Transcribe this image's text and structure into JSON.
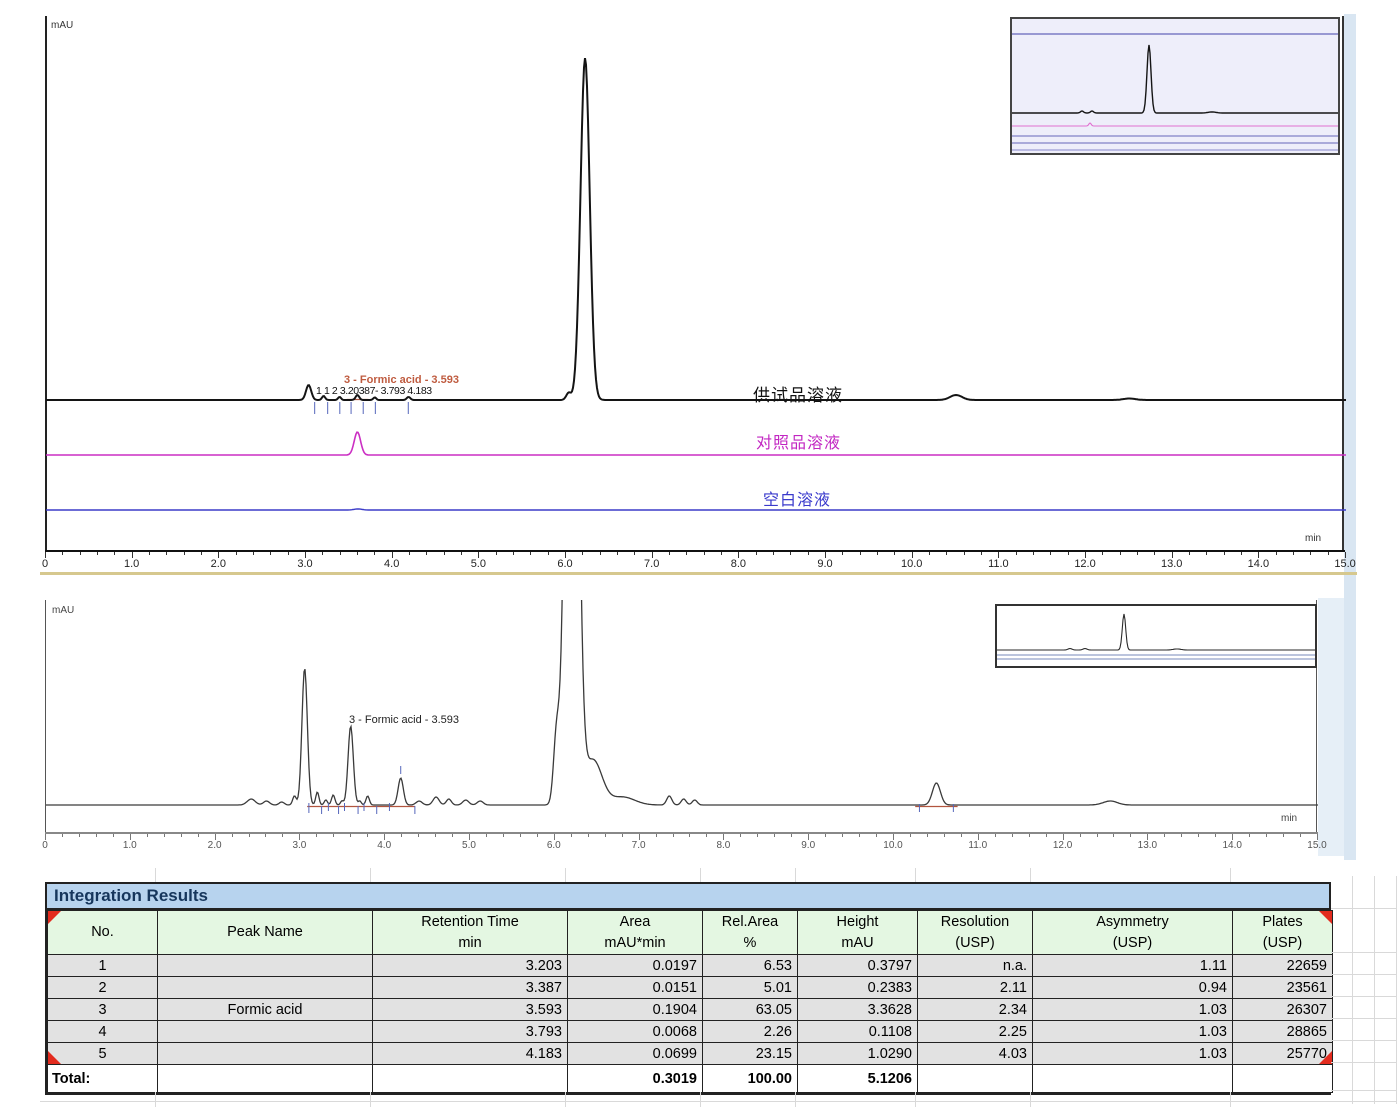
{
  "chart1": {
    "ylabel": "mAU",
    "xlabel": "min",
    "axis_labels": [
      "0",
      "1.0",
      "2.0",
      "3.0",
      "4.0",
      "5.0",
      "6.0",
      "7.0",
      "8.0",
      "9.0",
      "10.0",
      "11.0",
      "12.0",
      "13.0",
      "14.0",
      "15.0"
    ],
    "series_labels": {
      "sample": "供试品溶液",
      "reference": "对照品溶液",
      "blank": "空白溶液"
    },
    "peak_cluster_label": "1 1 2 3.20387- 3.793 4.183",
    "formic_label": "3 - Formic acid - 3.593"
  },
  "chart2": {
    "ylabel": "mAU",
    "xlabel": "min",
    "axis_labels": [
      "0",
      "1.0",
      "2.0",
      "3.0",
      "4.0",
      "5.0",
      "6.0",
      "7.0",
      "8.0",
      "9.0",
      "10.0",
      "11.0",
      "12.0",
      "13.0",
      "14.0",
      "15.0"
    ],
    "formic_label": "3 - Formic acid - 3.593"
  },
  "table": {
    "title": "Integration Results",
    "headers": [
      [
        "No.",
        ""
      ],
      [
        "Peak Name",
        ""
      ],
      [
        "Retention Time",
        "min"
      ],
      [
        "Area",
        "mAU*min"
      ],
      [
        "Rel.Area",
        "%"
      ],
      [
        "Height",
        "mAU"
      ],
      [
        "Resolution",
        "(USP)"
      ],
      [
        "Asymmetry",
        "(USP)"
      ],
      [
        "Plates",
        "(USP)"
      ]
    ],
    "rows": [
      [
        "1",
        "",
        "3.203",
        "0.0197",
        "6.53",
        "0.3797",
        "n.a.",
        "1.11",
        "22659"
      ],
      [
        "2",
        "",
        "3.387",
        "0.0151",
        "5.01",
        "0.2383",
        "2.11",
        "0.94",
        "23561"
      ],
      [
        "3",
        "Formic acid",
        "3.593",
        "0.1904",
        "63.05",
        "3.3628",
        "2.34",
        "1.03",
        "26307"
      ],
      [
        "4",
        "",
        "3.793",
        "0.0068",
        "2.26",
        "0.1108",
        "2.25",
        "1.03",
        "28865"
      ],
      [
        "5",
        "",
        "4.183",
        "0.0699",
        "23.15",
        "1.0290",
        "4.03",
        "1.03",
        "25770"
      ]
    ],
    "total": [
      "Total:",
      "",
      "",
      "0.3019",
      "100.00",
      "5.1206",
      "",
      "",
      ""
    ]
  },
  "chart_data": [
    {
      "type": "line",
      "title": "Chromatogram overlay of three solutions",
      "xlabel": "min",
      "ylabel": "mAU",
      "x_range": [
        0,
        15
      ],
      "x_ticks": [
        0,
        1,
        2,
        3,
        4,
        5,
        6,
        7,
        8,
        9,
        10,
        11,
        12,
        13,
        14,
        15
      ],
      "grid": false,
      "legend_position": "inline-right",
      "series": [
        {
          "name": "供试品溶液",
          "color": "#141414",
          "peaks_rt_min": [
            3.03,
            3.203,
            3.387,
            3.593,
            3.793,
            4.183,
            6.22,
            10.5
          ],
          "main_peak_rt_min": 6.22
        },
        {
          "name": "对照品溶液",
          "color": "#cb2fc3",
          "peaks_rt_min": [
            3.593
          ]
        },
        {
          "name": "空白溶液",
          "color": "#3b3bc8",
          "peaks_rt_min": []
        }
      ],
      "annotations": [
        "3 - Formic acid - 3.593",
        "1 1 2 3.20387- 3.793 4.183"
      ],
      "render": {
        "ppm": 86.67,
        "series": [
          {
            "color": "#141414",
            "w": 2,
            "base": 390,
            "peaks": [
              [
                3.03,
                15,
                2.6
              ],
              [
                3.203,
                4,
                1.6
              ],
              [
                3.387,
                3,
                1.5
              ],
              [
                3.593,
                5,
                1.8
              ],
              [
                3.793,
                2.5,
                1.5
              ],
              [
                4.183,
                3,
                1.8
              ],
              [
                6.03,
                7,
                2.4
              ],
              [
                6.22,
                342,
                4.6
              ],
              [
                10.5,
                5,
                6
              ],
              [
                12.5,
                1.5,
                6
              ]
            ]
          },
          {
            "color": "#cb2fc3",
            "w": 1.6,
            "base": 445,
            "peaks": [
              [
                3.593,
                23,
                3.2
              ]
            ]
          },
          {
            "color": "#3b3bc8",
            "w": 1.4,
            "base": 500,
            "peaks": [
              [
                3.6,
                1,
                4
              ]
            ]
          }
        ],
        "red_segments": [
          [
            3.47,
            3.72,
            389.5
          ]
        ],
        "int_ticks": [
          [
            3.1,
            392,
            404
          ],
          [
            3.25,
            392,
            404
          ],
          [
            3.39,
            392,
            404
          ],
          [
            3.52,
            392,
            404
          ],
          [
            3.66,
            392,
            404
          ],
          [
            3.8,
            392,
            404
          ],
          [
            4.18,
            392,
            404
          ]
        ]
      }
    },
    {
      "type": "line",
      "title": "Sample solution chromatogram (zoomed)",
      "xlabel": "min",
      "ylabel": "mAU",
      "x_range": [
        0,
        15
      ],
      "x_ticks": [
        0,
        1,
        2,
        3,
        4,
        5,
        6,
        7,
        8,
        9,
        10,
        11,
        12,
        13,
        14,
        15
      ],
      "grid": false,
      "series": [
        {
          "name": "供试品溶液",
          "color": "#3a3a3a",
          "peaks_rt_min": [
            3.05,
            3.203,
            3.387,
            3.593,
            3.793,
            4.183,
            6.2,
            10.5
          ],
          "labeled_peak": {
            "label": "3 - Formic acid - 3.593",
            "rt_min": 3.593
          }
        }
      ],
      "render": {
        "ppm": 84.8,
        "series": [
          {
            "color": "#3a3a3a",
            "w": 1.3,
            "base": 205,
            "peaks": [
              [
                2.42,
                6,
                4
              ],
              [
                2.6,
                4,
                3
              ],
              [
                2.78,
                3,
                2.5
              ],
              [
                2.93,
                9,
                1.8
              ],
              [
                3.05,
                137,
                2.7
              ],
              [
                3.2,
                13,
                1.6
              ],
              [
                3.3,
                5,
                1.6
              ],
              [
                3.387,
                10,
                1.7
              ],
              [
                3.49,
                4,
                1.5
              ],
              [
                3.593,
                79,
                2.6
              ],
              [
                3.7,
                4,
                1.5
              ],
              [
                3.793,
                9,
                1.7
              ],
              [
                4.183,
                27,
                2.6
              ],
              [
                4.4,
                4,
                3
              ],
              [
                4.6,
                8,
                3
              ],
              [
                4.75,
                6,
                2.5
              ],
              [
                4.95,
                5,
                3
              ],
              [
                5.12,
                4,
                3
              ],
              [
                6.02,
                66,
                3
              ],
              [
                6.2,
                900,
                5.5
              ],
              [
                6.45,
                45,
                9
              ],
              [
                6.8,
                8,
                12
              ],
              [
                7.35,
                9,
                2.6
              ],
              [
                7.52,
                6,
                2.5
              ],
              [
                7.65,
                5,
                2.5
              ],
              [
                10.5,
                22,
                4
              ],
              [
                12.55,
                4,
                7
              ]
            ]
          }
        ],
        "red_segments": [
          [
            3.08,
            4.35,
            206.5
          ],
          [
            10.25,
            10.75,
            206.5
          ]
        ],
        "int_ticks": [
          [
            3.1,
            203,
            213
          ],
          [
            3.25,
            206,
            214
          ],
          [
            3.33,
            203,
            211
          ],
          [
            3.45,
            206,
            214
          ],
          [
            3.52,
            203,
            211
          ],
          [
            3.68,
            206,
            214
          ],
          [
            3.75,
            203,
            211
          ],
          [
            3.9,
            206,
            214
          ],
          [
            4.05,
            203,
            211
          ],
          [
            4.183,
            166,
            174
          ],
          [
            4.35,
            206,
            214
          ],
          [
            10.3,
            204,
            212
          ],
          [
            10.7,
            204,
            212
          ]
        ]
      }
    }
  ],
  "insets": {
    "inset1": {
      "render": {
        "ppm": 1,
        "series": [
          {
            "color": "#6666bb",
            "w": 1.2,
            "base": 15,
            "peaks": []
          },
          {
            "color": "#151515",
            "w": 1.4,
            "base": 94,
            "peaks": [
              [
                70,
                2,
                1.5
              ],
              [
                80,
                2,
                1.5
              ],
              [
                137,
                68,
                2
              ],
              [
                200,
                1,
                4
              ]
            ]
          },
          {
            "color": "#e070d0",
            "w": 1.1,
            "base": 107,
            "peaks": [
              [
                78,
                3,
                1.2
              ]
            ]
          },
          {
            "color": "#6666bb",
            "w": 1.1,
            "base": 117,
            "peaks": []
          },
          {
            "color": "#6666bb",
            "w": 1.1,
            "base": 124,
            "peaks": []
          },
          {
            "color": "#8888cc",
            "w": 1,
            "base": 131,
            "peaks": []
          }
        ]
      }
    },
    "inset2": {
      "render": {
        "ppm": 1,
        "series": [
          {
            "color": "#2a2a2a",
            "w": 1.1,
            "base": 44,
            "peaks": [
              [
                73,
                1.5,
                2
              ],
              [
                88,
                1.5,
                2
              ],
              [
                127,
                36,
                1.7
              ],
              [
                180,
                1,
                4
              ]
            ]
          },
          {
            "color": "#7788bb",
            "w": 1,
            "base": 49,
            "peaks": []
          },
          {
            "color": "#7788bb",
            "w": 1,
            "base": 53,
            "peaks": []
          }
        ]
      }
    }
  }
}
